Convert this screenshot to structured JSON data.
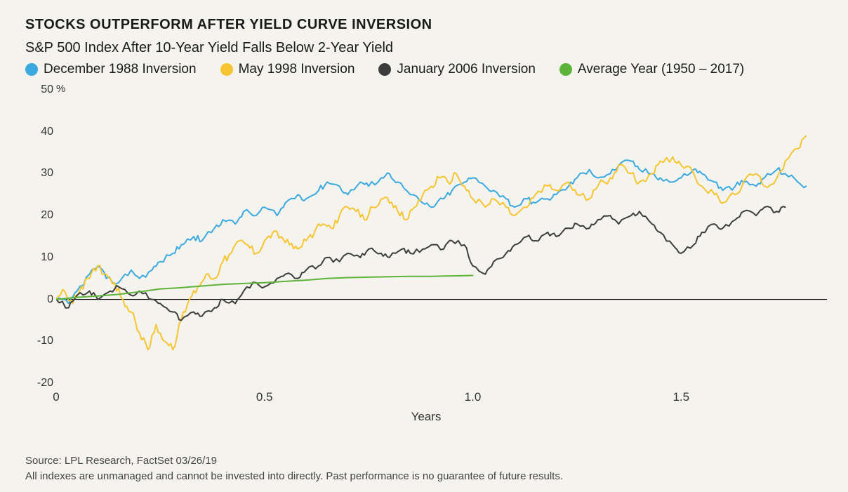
{
  "title": "STOCKS OUTPERFORM AFTER YIELD CURVE INVERSION",
  "subtitle": "S&P 500 Index After 10-Year Yield Falls Below 2-Year Yield",
  "legend": [
    {
      "label": "December 1988 Inversion",
      "color": "#3ba9e0"
    },
    {
      "label": "May 1998 Inversion",
      "color": "#f7c531"
    },
    {
      "label": "January 2006 Inversion",
      "color": "#3d3d3d"
    },
    {
      "label": "Average Year (1950 – 2017)",
      "color": "#5cb339"
    }
  ],
  "chart": {
    "type": "line",
    "xlabel": "Years",
    "xlim": [
      0,
      1.85
    ],
    "ylim": [
      -20,
      50
    ],
    "y_unit": "%",
    "xticks": [
      0,
      0.5,
      1.0,
      1.5
    ],
    "yticks": [
      -20,
      -10,
      0,
      10,
      20,
      30,
      40,
      50
    ],
    "line_width": 2.0,
    "background_color": "#f5f3ee",
    "zero_line_color": "#000000",
    "axis_font_size": 16,
    "series": [
      {
        "name": "dec1988",
        "color": "#3ba9e0",
        "y_at": {
          "0.00": 0,
          "0.03": -1,
          "0.05": 2,
          "0.08": 6,
          "0.10": 8,
          "0.12": 5,
          "0.15": 4,
          "0.18": 7,
          "0.20": 5,
          "0.23": 7,
          "0.25": 9,
          "0.28": 11,
          "0.30": 13,
          "0.33": 15,
          "0.35": 14,
          "0.38": 17,
          "0.40": 19,
          "0.43": 18,
          "0.45": 21,
          "0.48": 20,
          "0.50": 22,
          "0.53": 20,
          "0.55": 23,
          "0.58": 25,
          "0.60": 24,
          "0.63": 26,
          "0.65": 28,
          "0.68": 27,
          "0.70": 25,
          "0.73": 28,
          "0.75": 27,
          "0.78": 29,
          "0.80": 30,
          "0.82": 28,
          "0.85": 25,
          "0.88": 23,
          "0.90": 22,
          "0.93": 24,
          "0.95": 26,
          "0.98": 28,
          "1.00": 29,
          "1.03": 27,
          "1.05": 26,
          "1.08": 24,
          "1.10": 22,
          "1.13": 24,
          "1.15": 23,
          "1.18": 24,
          "1.20": 25,
          "1.23": 27,
          "1.25": 29,
          "1.28": 31,
          "1.30": 29,
          "1.33": 30,
          "1.35": 32,
          "1.38": 33,
          "1.40": 31,
          "1.43": 30,
          "1.45": 29,
          "1.48": 28,
          "1.50": 29,
          "1.53": 31,
          "1.55": 30,
          "1.58": 28,
          "1.60": 26,
          "1.63": 27,
          "1.65": 28,
          "1.68": 27,
          "1.70": 29,
          "1.73": 31,
          "1.75": 30,
          "1.78": 28,
          "1.80": 27
        }
      },
      {
        "name": "may1998",
        "color": "#f7c531",
        "y_at": {
          "0.00": 0,
          "0.02": 2,
          "0.04": -1,
          "0.06": 3,
          "0.08": 5,
          "0.10": 8,
          "0.12": 6,
          "0.14": 4,
          "0.16": 0,
          "0.18": -3,
          "0.20": -8,
          "0.22": -12,
          "0.24": -6,
          "0.26": -10,
          "0.28": -12,
          "0.30": -5,
          "0.32": 0,
          "0.34": 3,
          "0.36": 6,
          "0.38": 5,
          "0.40": 9,
          "0.42": 11,
          "0.44": 14,
          "0.46": 13,
          "0.48": 11,
          "0.50": 14,
          "0.52": 16,
          "0.54": 15,
          "0.56": 13,
          "0.58": 12,
          "0.60": 14,
          "0.62": 16,
          "0.64": 18,
          "0.66": 17,
          "0.68": 20,
          "0.70": 22,
          "0.72": 21,
          "0.74": 19,
          "0.76": 22,
          "0.78": 24,
          "0.80": 23,
          "0.82": 21,
          "0.84": 19,
          "0.86": 22,
          "0.88": 25,
          "0.90": 27,
          "0.92": 29,
          "0.94": 28,
          "0.96": 30,
          "0.98": 27,
          "1.00": 24,
          "1.03": 22,
          "1.05": 24,
          "1.08": 22,
          "1.10": 20,
          "1.13": 22,
          "1.15": 25,
          "1.18": 27,
          "1.20": 26,
          "1.23": 28,
          "1.25": 25,
          "1.28": 24,
          "1.30": 27,
          "1.33": 29,
          "1.35": 32,
          "1.38": 30,
          "1.40": 28,
          "1.43": 30,
          "1.45": 33,
          "1.48": 34,
          "1.50": 32,
          "1.53": 30,
          "1.55": 27,
          "1.58": 25,
          "1.60": 23,
          "1.63": 25,
          "1.65": 28,
          "1.68": 30,
          "1.70": 27,
          "1.73": 29,
          "1.75": 33,
          "1.78": 36,
          "1.80": 39
        }
      },
      {
        "name": "jan2006",
        "color": "#3d3d3d",
        "y_at": {
          "0.00": 0,
          "0.03": -2,
          "0.05": 1,
          "0.08": 2,
          "0.10": 0,
          "0.13": 2,
          "0.15": 3,
          "0.18": 1,
          "0.20": 2,
          "0.23": 0,
          "0.25": -1,
          "0.28": -3,
          "0.30": -5,
          "0.33": -3,
          "0.35": -4,
          "0.38": -2,
          "0.40": 0,
          "0.43": -1,
          "0.45": 2,
          "0.48": 4,
          "0.50": 3,
          "0.53": 5,
          "0.55": 6,
          "0.58": 5,
          "0.60": 7,
          "0.63": 8,
          "0.65": 10,
          "0.68": 9,
          "0.70": 11,
          "0.73": 10,
          "0.75": 12,
          "0.78": 11,
          "0.80": 10,
          "0.83": 12,
          "0.85": 11,
          "0.88": 12,
          "0.90": 13,
          "0.93": 12,
          "0.95": 14,
          "0.98": 13,
          "1.00": 8,
          "1.03": 6,
          "1.05": 9,
          "1.08": 11,
          "1.10": 13,
          "1.13": 15,
          "1.15": 14,
          "1.18": 16,
          "1.20": 15,
          "1.23": 17,
          "1.25": 18,
          "1.28": 17,
          "1.30": 19,
          "1.33": 20,
          "1.35": 18,
          "1.38": 20,
          "1.40": 21,
          "1.43": 18,
          "1.45": 16,
          "1.48": 13,
          "1.50": 11,
          "1.53": 13,
          "1.55": 16,
          "1.58": 18,
          "1.60": 17,
          "1.63": 19,
          "1.65": 21,
          "1.68": 20,
          "1.70": 22,
          "1.73": 21,
          "1.75": 22
        }
      },
      {
        "name": "avg",
        "color": "#5cb339",
        "y_at": {
          "0.00": 0.0,
          "0.05": 0.5,
          "0.10": 0.8,
          "0.15": 1.2,
          "0.20": 1.8,
          "0.25": 2.5,
          "0.30": 2.8,
          "0.35": 3.2,
          "0.40": 3.6,
          "0.45": 3.8,
          "0.50": 4.0,
          "0.55": 4.3,
          "0.60": 4.6,
          "0.65": 5.0,
          "0.70": 5.2,
          "0.75": 5.3,
          "0.80": 5.4,
          "0.85": 5.5,
          "0.90": 5.5,
          "0.95": 5.6,
          "1.00": 5.7
        }
      }
    ]
  },
  "source": "Source: LPL Research, FactSet 03/26/19",
  "disclaimer": "All indexes are unmanaged and cannot be invested into directly. Past performance is no guarantee of future results."
}
